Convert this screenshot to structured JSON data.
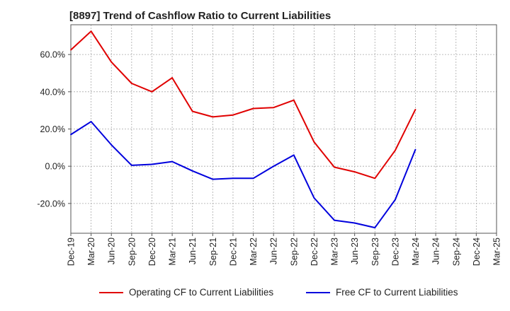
{
  "chart_data": {
    "type": "line",
    "title": "[8897]  Trend of Cashflow Ratio to Current Liabilities",
    "xlabel": "",
    "ylabel": "",
    "x": [
      "Dec-19",
      "Mar-20",
      "Jun-20",
      "Sep-20",
      "Dec-20",
      "Mar-21",
      "Jun-21",
      "Sep-21",
      "Dec-21",
      "Mar-22",
      "Jun-22",
      "Sep-22",
      "Dec-22",
      "Mar-23",
      "Jun-23",
      "Sep-23",
      "Dec-23",
      "Mar-24",
      "Jun-24",
      "Sep-24",
      "Dec-24",
      "Mar-25"
    ],
    "ylim": [
      -36,
      76
    ],
    "yticks": [
      -20,
      0,
      20,
      40,
      60
    ],
    "ytick_labels": [
      "-20.0%",
      "0.0%",
      "20.0%",
      "40.0%",
      "60.0%"
    ],
    "grid": true,
    "legend_position": "bottom",
    "series": [
      {
        "name": "Operating CF to Current Liabilities",
        "color": "#e00000",
        "values": [
          62.5,
          72.5,
          56,
          44.5,
          40,
          47.5,
          29.5,
          26.5,
          27.5,
          31,
          31.5,
          35.5,
          13,
          -0.5,
          -3,
          -6.5,
          8.5,
          30.5,
          null,
          null,
          null,
          null
        ]
      },
      {
        "name": "Free CF to Current Liabilities",
        "color": "#0000dd",
        "values": [
          17,
          24,
          11.5,
          0.5,
          1,
          2.5,
          -2.5,
          -7,
          -6.5,
          -6.5,
          0,
          6,
          -17,
          -29,
          -30.5,
          -33,
          -18,
          9,
          null,
          null,
          null,
          null
        ]
      }
    ]
  }
}
